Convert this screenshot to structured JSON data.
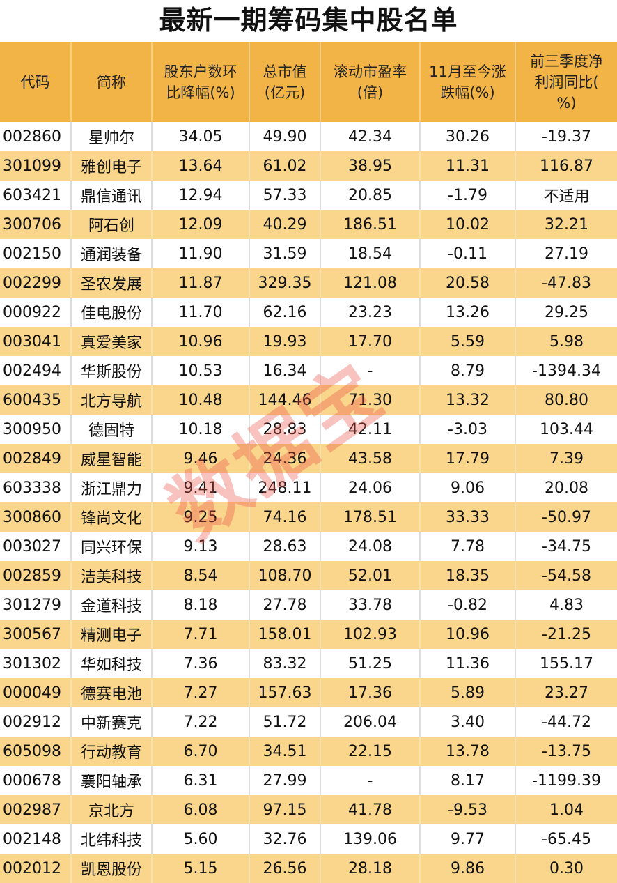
{
  "title": "最新一期筹码集中股名单",
  "watermark": "数据宝",
  "colors": {
    "header_bg": "#F2B446",
    "alt_row_bg": "#F9D68B",
    "watermark": "#EB5046"
  },
  "headers": [
    "代码",
    "简称",
    "股东户数环比降幅(%)",
    "总市值(亿元)",
    "滚动市盈率(倍)",
    "11月至今涨跌幅(%)",
    "前三季度净利润同比(%)"
  ],
  "rows": [
    [
      "002860",
      "星帅尔",
      "34.05",
      "49.90",
      "42.34",
      "30.26",
      "-19.37"
    ],
    [
      "301099",
      "雅创电子",
      "13.64",
      "61.02",
      "38.95",
      "11.31",
      "116.87"
    ],
    [
      "603421",
      "鼎信通讯",
      "12.94",
      "57.33",
      "20.85",
      "-1.79",
      "不适用"
    ],
    [
      "300706",
      "阿石创",
      "12.09",
      "40.29",
      "186.51",
      "10.02",
      "32.21"
    ],
    [
      "002150",
      "通润装备",
      "11.90",
      "31.59",
      "18.54",
      "-0.11",
      "27.19"
    ],
    [
      "002299",
      "圣农发展",
      "11.87",
      "329.35",
      "121.08",
      "20.58",
      "-47.83"
    ],
    [
      "000922",
      "佳电股份",
      "11.70",
      "62.16",
      "23.23",
      "13.26",
      "29.25"
    ],
    [
      "003041",
      "真爱美家",
      "10.96",
      "19.93",
      "17.70",
      "5.59",
      "5.98"
    ],
    [
      "002494",
      "华斯股份",
      "10.53",
      "16.34",
      "-",
      "8.79",
      "-1394.34"
    ],
    [
      "600435",
      "北方导航",
      "10.48",
      "144.46",
      "71.30",
      "13.32",
      "80.80"
    ],
    [
      "300950",
      "德固特",
      "10.18",
      "28.83",
      "42.11",
      "-3.03",
      "103.44"
    ],
    [
      "002849",
      "威星智能",
      "9.46",
      "24.36",
      "43.58",
      "17.79",
      "7.39"
    ],
    [
      "603338",
      "浙江鼎力",
      "9.41",
      "248.11",
      "24.06",
      "9.06",
      "20.08"
    ],
    [
      "300860",
      "锋尚文化",
      "9.25",
      "74.16",
      "178.51",
      "33.33",
      "-50.97"
    ],
    [
      "003027",
      "同兴环保",
      "9.13",
      "28.63",
      "24.08",
      "7.78",
      "-34.75"
    ],
    [
      "002859",
      "洁美科技",
      "8.54",
      "108.70",
      "52.01",
      "18.35",
      "-54.58"
    ],
    [
      "301279",
      "金道科技",
      "8.18",
      "27.78",
      "33.78",
      "-0.82",
      "4.83"
    ],
    [
      "300567",
      "精测电子",
      "7.71",
      "158.01",
      "102.93",
      "10.96",
      "-21.25"
    ],
    [
      "301302",
      "华如科技",
      "7.36",
      "83.32",
      "51.25",
      "11.36",
      "155.17"
    ],
    [
      "000049",
      "德赛电池",
      "7.27",
      "157.63",
      "17.36",
      "5.89",
      "23.27"
    ],
    [
      "002912",
      "中新赛克",
      "7.22",
      "51.72",
      "206.04",
      "3.40",
      "-44.72"
    ],
    [
      "605098",
      "行动教育",
      "6.70",
      "34.51",
      "22.15",
      "13.78",
      "-13.75"
    ],
    [
      "000678",
      "襄阳轴承",
      "6.31",
      "27.99",
      "-",
      "8.17",
      "-1199.39"
    ],
    [
      "002987",
      "京北方",
      "6.08",
      "97.15",
      "41.78",
      "-9.53",
      "1.04"
    ],
    [
      "002148",
      "北纬科技",
      "5.60",
      "32.76",
      "139.06",
      "9.77",
      "-65.45"
    ],
    [
      "002012",
      "凯恩股份",
      "5.15",
      "26.56",
      "28.18",
      "9.86",
      "0.30"
    ]
  ]
}
